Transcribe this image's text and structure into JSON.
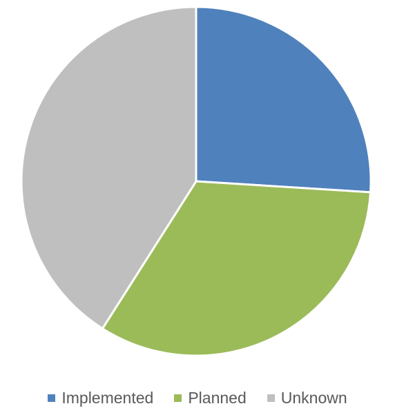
{
  "chart_data": {
    "type": "pie",
    "categories": [
      "Implemented",
      "Planned",
      "Unknown"
    ],
    "values": [
      26,
      33,
      41
    ],
    "colors": [
      "#4f81bd",
      "#9bbb59",
      "#bfbfbf"
    ],
    "start_angle_deg": 0,
    "direction": "clockwise",
    "slice_border_color": "#ffffff",
    "legend_position": "bottom",
    "title": ""
  }
}
